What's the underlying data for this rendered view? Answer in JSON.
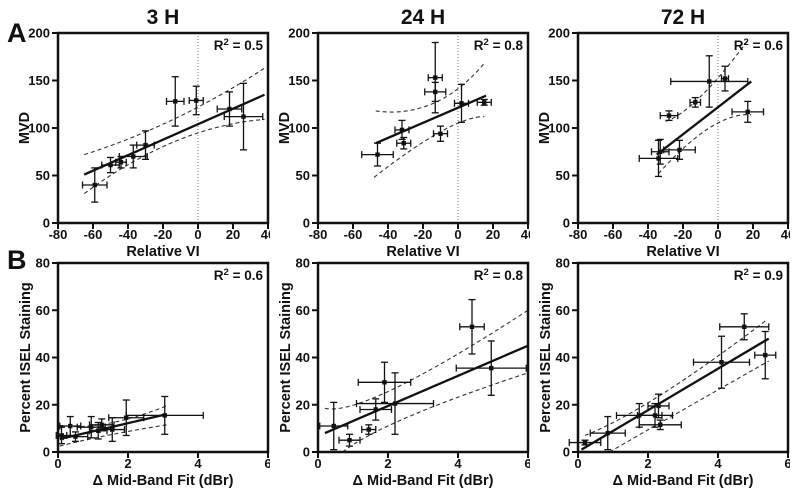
{
  "figure": {
    "row_labels": [
      {
        "id": "A",
        "label": "A"
      },
      {
        "id": "B",
        "label": "B"
      }
    ],
    "background": "#ffffff",
    "ink": "#111111",
    "band_color": "#333333",
    "ref_line_color": "#777777"
  },
  "chart_data": [
    {
      "id": "a1",
      "row": "A",
      "type": "scatter",
      "title": "3 H",
      "r2": {
        "base": "R",
        "exp": "2",
        "eq": "= 0.5"
      },
      "xlabel": "Relative VI",
      "ylabel": "MVD",
      "xlim": [
        -80,
        40
      ],
      "ylim": [
        0,
        200
      ],
      "xticks": [
        -80,
        -60,
        -40,
        -20,
        0,
        20,
        40
      ],
      "yticks": [
        0,
        50,
        100,
        150,
        200
      ],
      "ref_line_x": 0,
      "fit": [
        -65,
        51,
        38,
        135
      ],
      "band_upper": [
        [
          -65,
          72
        ],
        [
          -13,
          110
        ],
        [
          38,
          163
        ]
      ],
      "band_lower": [
        [
          -65,
          31
        ],
        [
          -13,
          86
        ],
        [
          38,
          109
        ]
      ],
      "points": [
        [
          -59,
          40,
          7,
          18
        ],
        [
          -50,
          61,
          5,
          8
        ],
        [
          -44,
          64,
          3,
          6
        ],
        [
          -37,
          70,
          8,
          12
        ],
        [
          -30,
          82,
          5,
          15
        ],
        [
          -13,
          128,
          5,
          26
        ],
        [
          -1,
          129,
          4,
          15
        ],
        [
          18,
          120,
          7,
          18
        ],
        [
          26,
          112,
          11,
          35
        ]
      ]
    },
    {
      "id": "a2",
      "row": "A",
      "type": "scatter",
      "title": "24 H",
      "r2": {
        "base": "R",
        "exp": "2",
        "eq": "= 0.8"
      },
      "xlabel": "Relative VI",
      "ylabel": "MVD",
      "xlim": [
        -80,
        40
      ],
      "ylim": [
        0,
        200
      ],
      "xticks": [
        -80,
        -60,
        -40,
        -20,
        0,
        20,
        40
      ],
      "yticks": [
        0,
        50,
        100,
        150,
        200
      ],
      "ref_line_x": 0,
      "fit": [
        -47,
        84,
        16,
        134
      ],
      "band_upper": [
        [
          -47,
          118
        ],
        [
          -14,
          126
        ],
        [
          15,
          168
        ]
      ],
      "band_lower": [
        [
          -48,
          48
        ],
        [
          -10,
          96
        ],
        [
          15,
          112
        ]
      ],
      "points": [
        [
          -46,
          72,
          9,
          12
        ],
        [
          -32,
          98,
          4,
          10
        ],
        [
          -31,
          84,
          4,
          6
        ],
        [
          -13,
          153,
          4,
          37
        ],
        [
          -13,
          138,
          6,
          10
        ],
        [
          -10,
          94,
          4,
          8
        ],
        [
          2,
          126,
          4,
          20
        ],
        [
          15,
          127,
          4,
          3
        ]
      ]
    },
    {
      "id": "a3",
      "row": "A",
      "type": "scatter",
      "title": "72 H",
      "r2": {
        "base": "R",
        "exp": "2",
        "eq": "= 0.6"
      },
      "xlabel": "Relative VI",
      "ylabel": "MVD",
      "xlim": [
        -80,
        40
      ],
      "ylim": [
        0,
        200
      ],
      "xticks": [
        -80,
        -60,
        -40,
        -20,
        0,
        20,
        40
      ],
      "yticks": [
        0,
        50,
        100,
        150,
        200
      ],
      "ref_line_x": 0,
      "fit": [
        -35,
        72,
        19,
        149
      ],
      "band_upper": [
        [
          -30,
          107
        ],
        [
          -10,
          133
        ],
        [
          17,
          192
        ]
      ],
      "band_lower": [
        [
          -34,
          52
        ],
        [
          -5,
          100
        ],
        [
          19,
          114
        ]
      ],
      "points": [
        [
          -34,
          68,
          11,
          19
        ],
        [
          -33,
          75,
          5,
          13
        ],
        [
          -28,
          113,
          5,
          5
        ],
        [
          -22,
          77,
          9,
          10
        ],
        [
          -13,
          127,
          3,
          5
        ],
        [
          -5,
          149,
          22,
          27
        ],
        [
          4,
          152,
          2,
          13
        ],
        [
          17,
          117,
          9,
          11
        ]
      ]
    },
    {
      "id": "b1",
      "row": "B",
      "type": "scatter",
      "title": "",
      "r2": {
        "base": "R",
        "exp": "2",
        "eq": "= 0.6"
      },
      "xlabel": "Δ Mid-Band Fit (dBr)",
      "ylabel": "Percent ISEL Staining",
      "xlim": [
        0,
        6
      ],
      "ylim": [
        0,
        80
      ],
      "xticks": [
        0,
        2,
        4,
        6
      ],
      "yticks": [
        0,
        20,
        40,
        60,
        80
      ],
      "ref_line_x": null,
      "fit": [
        0.05,
        5.5,
        3.1,
        16
      ],
      "band_upper": [
        [
          0.05,
          11.3
        ],
        [
          1.4,
          12
        ],
        [
          3.1,
          19.5
        ]
      ],
      "band_lower": [
        [
          0.05,
          2.5
        ],
        [
          1.4,
          7
        ],
        [
          3.1,
          11.5
        ]
      ],
      "points": [
        [
          0.1,
          7,
          0.15,
          3.5
        ],
        [
          0.35,
          11,
          0.3,
          4
        ],
        [
          0.5,
          6.5,
          0.35,
          2
        ],
        [
          0.95,
          10.5,
          0.4,
          4.5
        ],
        [
          1.15,
          9,
          0.25,
          3.5
        ],
        [
          1.25,
          11.5,
          0.35,
          2.5
        ],
        [
          1.55,
          9.5,
          0.35,
          5
        ],
        [
          1.95,
          14.5,
          0.5,
          7.5
        ],
        [
          3.05,
          15.5,
          1.1,
          8
        ]
      ]
    },
    {
      "id": "b2",
      "row": "B",
      "type": "scatter",
      "title": "",
      "r2": {
        "base": "R",
        "exp": "2",
        "eq": "= 0.8"
      },
      "xlabel": "Δ Mid-Band Fit (dBr)",
      "ylabel": "Percent ISEL Staining",
      "xlim": [
        0,
        6
      ],
      "ylim": [
        0,
        80
      ],
      "xticks": [
        0,
        2,
        4,
        6
      ],
      "yticks": [
        0,
        20,
        40,
        60,
        80
      ],
      "ref_line_x": null,
      "fit": [
        0.2,
        8,
        6,
        45
      ],
      "band_upper": [
        [
          0.2,
          18.5
        ],
        [
          2.2,
          27
        ],
        [
          6,
          60
        ]
      ],
      "band_lower": [
        [
          0.7,
          0
        ],
        [
          2.6,
          15
        ],
        [
          6,
          33.5
        ]
      ],
      "points": [
        [
          0.45,
          11,
          0.4,
          10
        ],
        [
          0.9,
          5,
          0.3,
          2.5
        ],
        [
          1.45,
          9.5,
          0.2,
          2
        ],
        [
          1.65,
          18,
          0.45,
          4.5
        ],
        [
          1.9,
          29.5,
          0.75,
          8.5
        ],
        [
          2.2,
          20.5,
          1.1,
          13
        ],
        [
          4.4,
          53,
          0.35,
          11.5
        ],
        [
          4.95,
          35.5,
          1.0,
          11.5
        ]
      ]
    },
    {
      "id": "b3",
      "row": "B",
      "type": "scatter",
      "title": "",
      "r2": {
        "base": "R",
        "exp": "2",
        "eq": "= 0.9"
      },
      "xlabel": "Δ Mid-Band Fit (dBr)",
      "ylabel": "Percent ISEL Staining",
      "xlim": [
        0,
        6
      ],
      "ylim": [
        0,
        80
      ],
      "xticks": [
        0,
        2,
        4,
        6
      ],
      "yticks": [
        0,
        20,
        40,
        60,
        80
      ],
      "ref_line_x": null,
      "fit": [
        0.1,
        1,
        5.45,
        48
      ],
      "band_upper": [
        [
          0.2,
          7
        ],
        [
          2.4,
          24.5
        ],
        [
          5.4,
          56
        ]
      ],
      "band_lower": [
        [
          0.9,
          0
        ],
        [
          2.9,
          17
        ],
        [
          5.45,
          38.5
        ]
      ],
      "points": [
        [
          0.2,
          4,
          0.45,
          1
        ],
        [
          0.85,
          8,
          0.5,
          7
        ],
        [
          1.75,
          15.5,
          0.65,
          5
        ],
        [
          2.2,
          15.5,
          0.5,
          5
        ],
        [
          2.3,
          19.5,
          0.3,
          5
        ],
        [
          2.35,
          11.5,
          0.6,
          2
        ],
        [
          4.1,
          38,
          0.8,
          11
        ],
        [
          4.75,
          53,
          0.7,
          5.5
        ],
        [
          5.35,
          41,
          0.3,
          10
        ]
      ]
    }
  ]
}
